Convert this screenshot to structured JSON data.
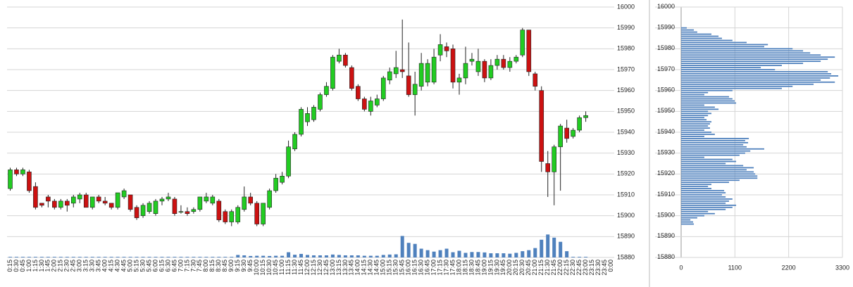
{
  "chart_data": [
    {
      "type": "candlestick",
      "categories": [
        "0:15",
        "0:30",
        "0:45",
        "1:00",
        "1:15",
        "1:30",
        "1:45",
        "2:00",
        "2:15",
        "2:30",
        "2:45",
        "3:00",
        "3:15",
        "3:30",
        "3:45",
        "4:00",
        "4:15",
        "4:30",
        "4:45",
        "5:00",
        "5:15",
        "5:30",
        "5:45",
        "6:00",
        "6:15",
        "6:30",
        "6:45",
        "7:00",
        "7:15",
        "7:30",
        "7:45",
        "8:00",
        "8:15",
        "8:30",
        "8:45",
        "9:00",
        "9:15",
        "9:30",
        "9:45",
        "10:00",
        "10:15",
        "10:30",
        "10:45",
        "11:00",
        "11:15",
        "11:30",
        "11:45",
        "12:00",
        "12:15",
        "12:30",
        "12:45",
        "13:00",
        "13:15",
        "13:30",
        "13:45",
        "14:00",
        "14:15",
        "14:30",
        "14:45",
        "15:00",
        "15:15",
        "15:30",
        "15:45",
        "16:00",
        "16:15",
        "16:30",
        "16:45",
        "17:00",
        "17:15",
        "17:30",
        "17:45",
        "18:00",
        "18:15",
        "18:30",
        "18:45",
        "19:00",
        "19:15",
        "19:30",
        "19:45",
        "20:00",
        "20:15",
        "20:30",
        "20:45",
        "21:00",
        "21:15",
        "21:30",
        "21:45",
        "22:00",
        "22:15",
        "22:30",
        "22:45",
        "23:00",
        "23:15",
        "23:30",
        "23:45",
        "0:00"
      ],
      "open": [
        15913,
        15922,
        15920,
        15921,
        15914,
        15906,
        15909,
        15907,
        15904,
        15907,
        15906,
        15908,
        15910,
        15904,
        15909,
        15907,
        15906,
        15904,
        15909,
        15910,
        15904,
        15900,
        15902,
        15901,
        15907,
        15908,
        15908,
        15902,
        15902,
        15902,
        15903,
        15907,
        15906,
        15907,
        15902,
        15897,
        15897,
        15903,
        15909,
        15906,
        15896,
        15904,
        15912,
        15916,
        15919,
        15932,
        15939,
        15945,
        15946,
        15951,
        15958,
        15961,
        15974,
        15977,
        15971,
        15962,
        15956,
        15950,
        15953,
        15956,
        15965,
        15968,
        15970,
        15967,
        15958,
        15962,
        15964,
        15964,
        15977,
        15981,
        15980,
        15964,
        15966,
        15974,
        15969,
        15974,
        15966,
        15972,
        15975,
        15971,
        15974,
        15977,
        15989,
        15968,
        15960,
        15925,
        15921,
        15933,
        15942,
        15938,
        15941,
        15947,
        null,
        null,
        null,
        null
      ],
      "high": [
        15923,
        15923,
        15923,
        15922,
        15916,
        15906,
        15910,
        15908,
        15908,
        15908,
        15910,
        15911,
        15911,
        15909,
        15910,
        15909,
        15906,
        15911,
        15913,
        15910,
        15905,
        15906,
        15907,
        15908,
        15909,
        15911,
        15909,
        15905,
        15904,
        15904,
        15909,
        15911,
        15910,
        15908,
        15903,
        15903,
        15905,
        15914,
        15911,
        15907,
        15906,
        15913,
        15920,
        15921,
        15936,
        15940,
        15952,
        15952,
        15953,
        15959,
        15964,
        15977,
        15980,
        15978,
        15972,
        15963,
        15957,
        15957,
        15958,
        15967,
        15971,
        15979,
        15994,
        15983,
        15969,
        15978,
        15975,
        15980,
        15987,
        15983,
        15982,
        15968,
        15981,
        15978,
        15980,
        15975,
        15975,
        15977,
        15977,
        15976,
        15977,
        15990,
        15989,
        15969,
        15962,
        15931,
        15934,
        15944,
        15946,
        15942,
        15948,
        15950,
        null,
        null,
        null,
        null
      ],
      "low": [
        15912,
        15919,
        15919,
        15911,
        15903,
        15904,
        15904,
        15903,
        15903,
        15902,
        15904,
        15906,
        15904,
        15903,
        15906,
        15905,
        15903,
        15903,
        15908,
        15902,
        15898,
        15899,
        15901,
        15900,
        15905,
        15907,
        15900,
        15901,
        15900,
        15901,
        15902,
        15906,
        15905,
        15897,
        15896,
        15895,
        15896,
        15902,
        15905,
        15895,
        15895,
        15903,
        15911,
        15915,
        15918,
        15931,
        15938,
        15943,
        15945,
        15950,
        15957,
        15960,
        15973,
        15971,
        15960,
        15955,
        15950,
        15948,
        15952,
        15955,
        15963,
        15966,
        15966,
        15957,
        15948,
        15960,
        15962,
        15963,
        15974,
        15976,
        15961,
        15958,
        15963,
        15972,
        15967,
        15964,
        15965,
        15970,
        15970,
        15969,
        15973,
        15976,
        15967,
        15960,
        15921,
        15909,
        15905,
        15912,
        15935,
        15937,
        15940,
        15945,
        null,
        null,
        null,
        null
      ],
      "close": [
        15922,
        15920,
        15922,
        15912,
        15904,
        15905,
        15907,
        15904,
        15907,
        15905,
        15909,
        15910,
        15904,
        15909,
        15907,
        15906,
        15904,
        15911,
        15912,
        15903,
        15899,
        15905,
        15906,
        15907,
        15908,
        15909,
        15901,
        15902,
        15901,
        15903,
        15909,
        15909,
        15909,
        15898,
        15897,
        15902,
        15904,
        15909,
        15906,
        15896,
        15906,
        15912,
        15918,
        15919,
        15933,
        15939,
        15951,
        15949,
        15952,
        15958,
        15962,
        15976,
        15977,
        15972,
        15961,
        15956,
        15951,
        15955,
        15956,
        15966,
        15969,
        15971,
        15969,
        15958,
        15963,
        15973,
        15973,
        15976,
        15982,
        15979,
        15964,
        15966,
        15973,
        15975,
        15974,
        15966,
        15972,
        15975,
        15971,
        15974,
        15976,
        15989,
        15969,
        15962,
        15926,
        15921,
        15933,
        15943,
        15937,
        15941,
        15947,
        15948,
        null,
        null,
        null,
        null
      ],
      "volume": [
        0.3,
        0.3,
        0.3,
        0.3,
        0.3,
        0.3,
        0.3,
        0.3,
        0.3,
        0.3,
        0.3,
        0.3,
        0.3,
        0.3,
        0.3,
        0.3,
        0.3,
        0.3,
        0.3,
        0.3,
        0.3,
        0.3,
        0.3,
        0.3,
        0.3,
        0.3,
        0.3,
        0.3,
        0.3,
        0.3,
        0.3,
        0.3,
        0.3,
        0.3,
        0.3,
        0.3,
        1.2,
        1.0,
        0.7,
        0.8,
        0.8,
        0.7,
        0.8,
        0.8,
        2.5,
        1.3,
        1.7,
        1.2,
        1.0,
        1.0,
        1.0,
        1.4,
        1.2,
        1.0,
        1.0,
        1.0,
        0.8,
        0.8,
        0.8,
        1.2,
        1.4,
        1.5,
        10.3,
        7.0,
        6.5,
        4.2,
        3.5,
        2.8,
        3.5,
        4.2,
        2.5,
        3.2,
        2.2,
        2.6,
        2.6,
        2.4,
        2.0,
        2.0,
        2.0,
        1.8,
        2.2,
        3.0,
        3.5,
        4.5,
        8.5,
        11.0,
        9.5,
        7.5,
        3.0,
        0.3,
        0.3,
        0.3,
        null,
        null,
        null,
        null
      ],
      "up_color": "#22cc22",
      "down_color": "#cc1111",
      "volume_color": "#4f81bd",
      "ylim": [
        15880,
        16000
      ],
      "yticks": [
        15880,
        15890,
        15900,
        15910,
        15920,
        15930,
        15940,
        15950,
        15960,
        15970,
        15980,
        15990,
        16000
      ],
      "grid": true
    },
    {
      "type": "bar",
      "orientation": "horizontal",
      "categories": [
        15896,
        15897,
        15898,
        15899,
        15900,
        15901,
        15902,
        15903,
        15904,
        15905,
        15906,
        15907,
        15908,
        15909,
        15910,
        15911,
        15912,
        15913,
        15914,
        15915,
        15916,
        15917,
        15918,
        15919,
        15920,
        15921,
        15922,
        15923,
        15924,
        15925,
        15926,
        15927,
        15928,
        15929,
        15930,
        15931,
        15932,
        15933,
        15934,
        15935,
        15936,
        15937,
        15938,
        15939,
        15940,
        15941,
        15942,
        15943,
        15944,
        15945,
        15946,
        15947,
        15948,
        15949,
        15950,
        15951,
        15952,
        15953,
        15954,
        15955,
        15956,
        15957,
        15958,
        15959,
        15960,
        15961,
        15962,
        15963,
        15964,
        15965,
        15966,
        15967,
        15968,
        15969,
        15970,
        15971,
        15972,
        15973,
        15974,
        15975,
        15976,
        15977,
        15978,
        15979,
        15980,
        15981,
        15982,
        15983,
        15984,
        15985,
        15986,
        15987,
        15988,
        15989,
        15990
      ],
      "values": [
        260,
        245,
        190,
        330,
        475,
        690,
        550,
        910,
        1050,
        1125,
        910,
        980,
        1050,
        910,
        835,
        910,
        880,
        620,
        550,
        620,
        980,
        1195,
        1560,
        1560,
        1515,
        1485,
        1340,
        1485,
        1270,
        910,
        1125,
        1050,
        475,
        1195,
        1310,
        1415,
        1700,
        1340,
        1270,
        1370,
        1310,
        1385,
        475,
        690,
        620,
        475,
        590,
        550,
        590,
        620,
        520,
        475,
        550,
        620,
        550,
        765,
        690,
        475,
        1125,
        1095,
        1050,
        980,
        475,
        550,
        1050,
        2060,
        2280,
        2710,
        3145,
        2855,
        3045,
        3215,
        3070,
        3000,
        1920,
        1630,
        2060,
        2495,
        2855,
        3000,
        3145,
        2855,
        2640,
        2495,
        2280,
        1700,
        1775,
        1340,
        1050,
        835,
        765,
        620,
        330,
        260,
        115
      ],
      "color": "#4f81bd",
      "xlim": [
        0,
        3300
      ],
      "xticks": [
        0,
        1100,
        2200,
        3300
      ],
      "ylim": [
        15880,
        16000
      ],
      "yticks": [
        15880,
        15890,
        15900,
        15910,
        15920,
        15930,
        15940,
        15950,
        15960,
        15970,
        15980,
        15990,
        16000
      ],
      "grid": true
    }
  ]
}
